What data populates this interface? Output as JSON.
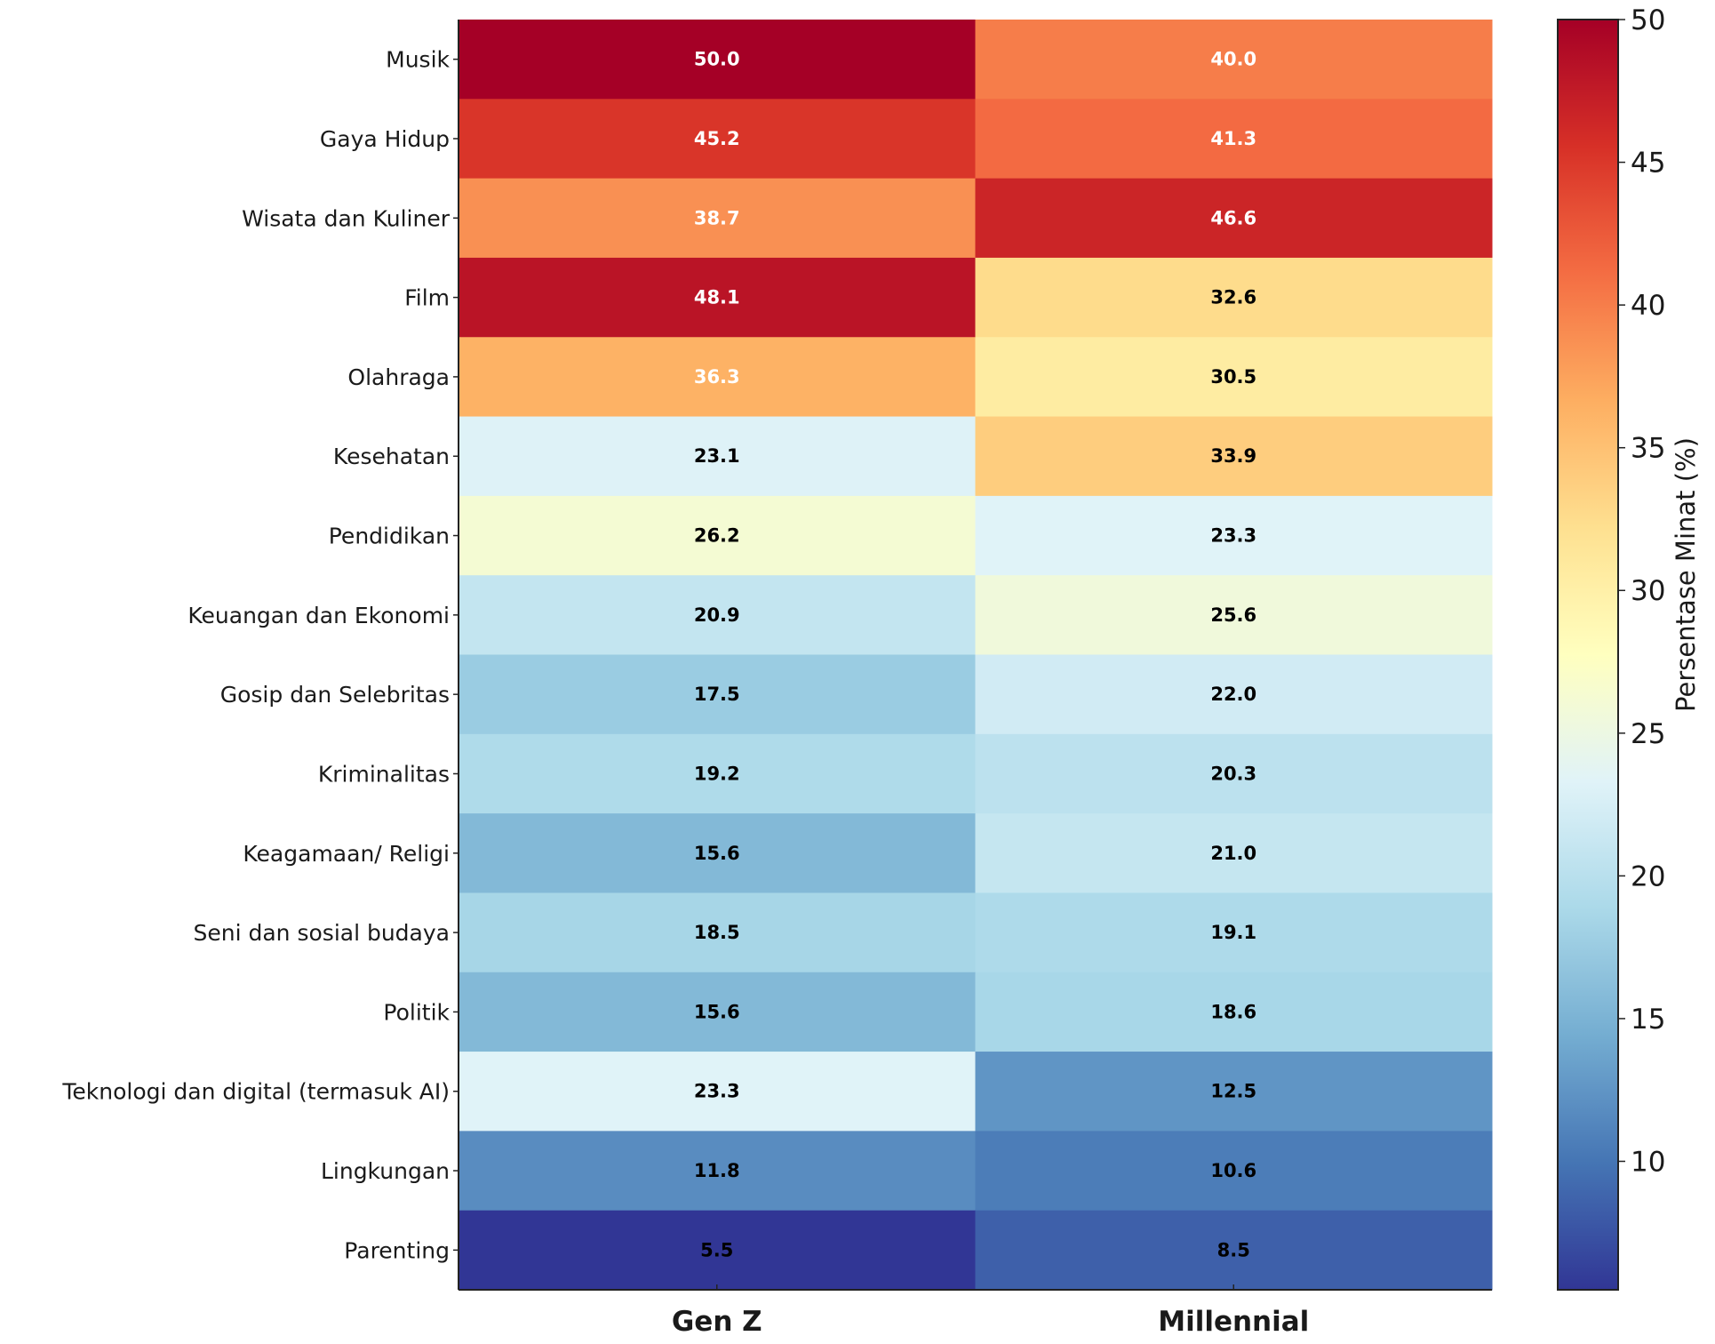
{
  "chart_data": {
    "type": "heatmap",
    "title": "",
    "xlabel": "",
    "ylabel": "",
    "columns": [
      "Gen Z",
      "Millennial"
    ],
    "rows": [
      "Musik",
      "Gaya Hidup",
      "Wisata dan Kuliner",
      "Film",
      "Olahraga",
      "Kesehatan",
      "Pendidikan",
      "Keuangan dan Ekonomi",
      "Gosip dan Selebritas",
      "Kriminalitas",
      "Keagamaan/ Religi",
      "Seni dan sosial budaya",
      "Politik",
      "Teknologi dan digital (termasuk AI)",
      "Lingkungan",
      "Parenting"
    ],
    "values": [
      [
        50.0,
        40.0
      ],
      [
        45.2,
        41.3
      ],
      [
        38.7,
        46.6
      ],
      [
        48.1,
        32.6
      ],
      [
        36.3,
        30.5
      ],
      [
        23.1,
        33.9
      ],
      [
        26.2,
        23.3
      ],
      [
        20.9,
        25.6
      ],
      [
        17.5,
        22.0
      ],
      [
        19.2,
        20.3
      ],
      [
        15.6,
        21.0
      ],
      [
        18.5,
        19.1
      ],
      [
        15.6,
        18.6
      ],
      [
        23.3,
        12.5
      ],
      [
        11.8,
        10.6
      ],
      [
        5.5,
        8.5
      ]
    ],
    "colormap": "RdYlBu_r",
    "colorbar": {
      "label": "Persentase Minat (%)",
      "range": [
        5.5,
        50
      ],
      "ticks": [
        10,
        15,
        20,
        25,
        30,
        35,
        40,
        45,
        50
      ]
    }
  }
}
